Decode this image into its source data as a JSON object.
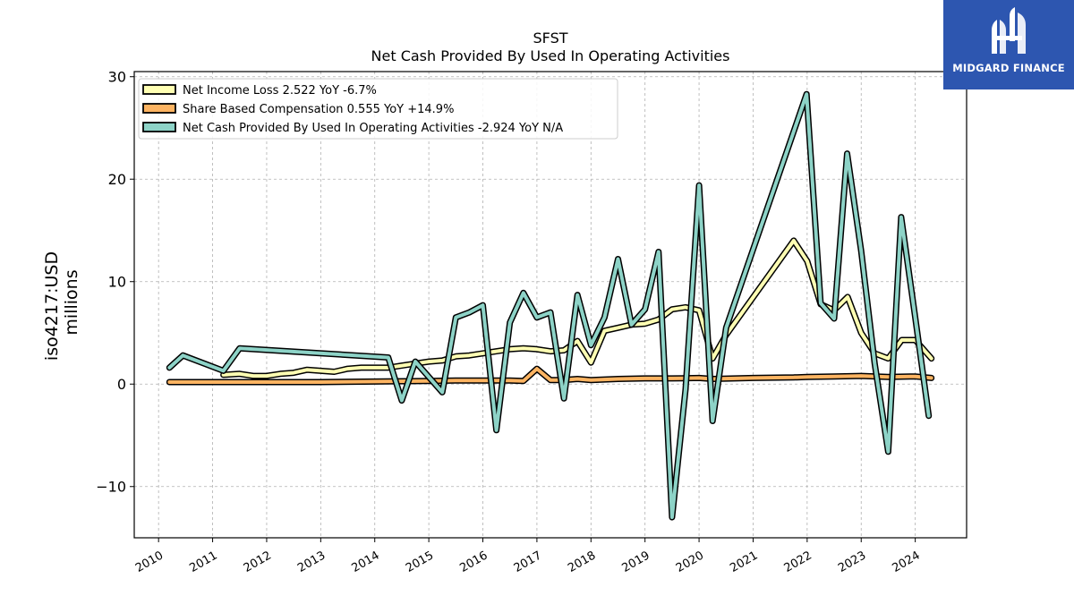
{
  "chart_data": {
    "type": "line",
    "title": "SFST",
    "subtitle": "Net Cash Provided By Used In Operating Activities",
    "ylabel": "iso4217:USD",
    "ylabel2": "millions",
    "xlim": [
      2009.55,
      2024.95
    ],
    "ylim": [
      -15,
      30.5
    ],
    "yticks": [
      -10,
      0,
      10,
      20,
      30
    ],
    "xticks": [
      2010,
      2011,
      2012,
      2013,
      2014,
      2015,
      2016,
      2017,
      2018,
      2019,
      2020,
      2021,
      2022,
      2023,
      2024
    ],
    "grid": true,
    "legend_position": "top-left",
    "series": [
      {
        "name": "Net Income Loss",
        "legend_label": "Net Income Loss  2.522 YoY -6.7%",
        "color": "#ffffb3",
        "points": [
          [
            2011.2,
            0.9
          ],
          [
            2011.5,
            1.0
          ],
          [
            2011.75,
            0.8
          ],
          [
            2012.0,
            0.8
          ],
          [
            2012.25,
            1.0
          ],
          [
            2012.5,
            1.1
          ],
          [
            2012.75,
            1.4
          ],
          [
            2013.0,
            1.3
          ],
          [
            2013.25,
            1.2
          ],
          [
            2013.5,
            1.5
          ],
          [
            2013.75,
            1.6
          ],
          [
            2014.0,
            1.6
          ],
          [
            2014.25,
            1.6
          ],
          [
            2014.5,
            1.8
          ],
          [
            2014.75,
            2.0
          ],
          [
            2015.0,
            2.2
          ],
          [
            2015.25,
            2.3
          ],
          [
            2015.5,
            2.7
          ],
          [
            2015.75,
            2.8
          ],
          [
            2016.0,
            3.0
          ],
          [
            2016.25,
            3.2
          ],
          [
            2016.5,
            3.4
          ],
          [
            2016.75,
            3.5
          ],
          [
            2017.0,
            3.4
          ],
          [
            2017.25,
            3.2
          ],
          [
            2017.5,
            3.3
          ],
          [
            2017.75,
            4.2
          ],
          [
            2018.0,
            2.1
          ],
          [
            2018.25,
            5.2
          ],
          [
            2018.5,
            5.5
          ],
          [
            2018.75,
            5.8
          ],
          [
            2019.0,
            5.9
          ],
          [
            2019.25,
            6.3
          ],
          [
            2019.5,
            7.3
          ],
          [
            2019.75,
            7.5
          ],
          [
            2020.0,
            7.2
          ],
          [
            2020.25,
            2.5
          ],
          [
            2020.5,
            4.8
          ],
          [
            2021.75,
            14.0
          ],
          [
            2022.0,
            12.0
          ],
          [
            2022.25,
            7.8
          ],
          [
            2022.5,
            7.2
          ],
          [
            2022.75,
            8.5
          ],
          [
            2023.0,
            5.0
          ],
          [
            2023.25,
            3.0
          ],
          [
            2023.5,
            2.5
          ],
          [
            2023.75,
            4.3
          ],
          [
            2024.0,
            4.3
          ],
          [
            2024.3,
            2.5
          ]
        ]
      },
      {
        "name": "Share Based Compensation",
        "legend_label": "Share Based Compensation  0.555 YoY +14.9%",
        "color": "#fdb462",
        "points": [
          [
            2010.2,
            0.2
          ],
          [
            2011.0,
            0.2
          ],
          [
            2012.0,
            0.2
          ],
          [
            2013.0,
            0.2
          ],
          [
            2014.0,
            0.25
          ],
          [
            2015.0,
            0.3
          ],
          [
            2015.5,
            0.35
          ],
          [
            2016.0,
            0.35
          ],
          [
            2016.5,
            0.35
          ],
          [
            2016.75,
            0.3
          ],
          [
            2017.0,
            1.5
          ],
          [
            2017.25,
            0.4
          ],
          [
            2017.5,
            0.4
          ],
          [
            2017.75,
            0.5
          ],
          [
            2018.0,
            0.4
          ],
          [
            2018.5,
            0.5
          ],
          [
            2019.0,
            0.55
          ],
          [
            2019.5,
            0.55
          ],
          [
            2020.0,
            0.6
          ],
          [
            2020.25,
            0.5
          ],
          [
            2021.0,
            0.6
          ],
          [
            2021.75,
            0.65
          ],
          [
            2022.0,
            0.7
          ],
          [
            2022.5,
            0.75
          ],
          [
            2023.0,
            0.8
          ],
          [
            2023.5,
            0.7
          ],
          [
            2024.0,
            0.75
          ],
          [
            2024.3,
            0.6
          ]
        ]
      },
      {
        "name": "Net Cash Provided By Used In Operating Activities",
        "legend_label": "Net Cash Provided By Used In Operating Activities  -2.924 YoY N/A",
        "color": "#8dd3c7",
        "points": [
          [
            2010.2,
            1.6
          ],
          [
            2010.45,
            2.8
          ],
          [
            2011.2,
            1.3
          ],
          [
            2011.5,
            3.5
          ],
          [
            2014.25,
            2.6
          ],
          [
            2014.5,
            -1.6
          ],
          [
            2014.75,
            2.2
          ],
          [
            2015.25,
            -0.8
          ],
          [
            2015.5,
            6.5
          ],
          [
            2015.75,
            7.0
          ],
          [
            2016.0,
            7.7
          ],
          [
            2016.25,
            -4.5
          ],
          [
            2016.5,
            6.0
          ],
          [
            2016.75,
            8.9
          ],
          [
            2017.0,
            6.5
          ],
          [
            2017.25,
            7.0
          ],
          [
            2017.5,
            -1.4
          ],
          [
            2017.75,
            8.7
          ],
          [
            2018.0,
            3.8
          ],
          [
            2018.25,
            6.5
          ],
          [
            2018.5,
            12.2
          ],
          [
            2018.75,
            5.8
          ],
          [
            2019.0,
            7.3
          ],
          [
            2019.25,
            12.9
          ],
          [
            2019.5,
            -13.0
          ],
          [
            2019.75,
            -0.5
          ],
          [
            2020.0,
            19.4
          ],
          [
            2020.25,
            -3.6
          ],
          [
            2020.5,
            5.5
          ],
          [
            2021.99,
            28.3
          ],
          [
            2022.25,
            7.9
          ],
          [
            2022.5,
            6.4
          ],
          [
            2022.74,
            22.5
          ],
          [
            2023.0,
            13.0
          ],
          [
            2023.25,
            2.0
          ],
          [
            2023.5,
            -6.6
          ],
          [
            2023.74,
            16.3
          ],
          [
            2024.0,
            6.5
          ],
          [
            2024.25,
            -3.1
          ]
        ]
      }
    ]
  },
  "logo": {
    "text": "MIDGARD FINANCE",
    "icon": "midgard-logo-icon",
    "background": "#2d56b0"
  }
}
